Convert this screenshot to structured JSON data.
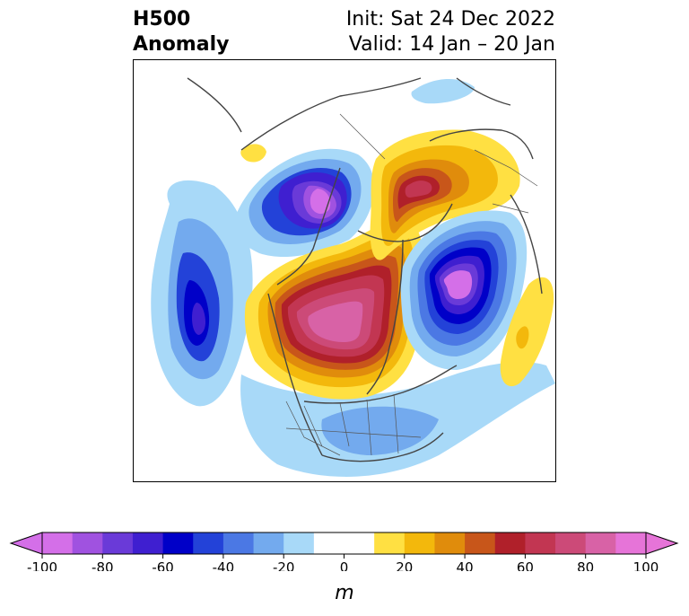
{
  "title": {
    "left_line1": "H500",
    "left_line2": "Anomaly",
    "right_line1": "Init: Sat 24 Dec 2022",
    "right_line2": "Valid: 14 Jan – 20 Jan"
  },
  "colorbar": {
    "unit_label": "m",
    "ticks": [
      "-100",
      "-80",
      "-60",
      "-40",
      "-20",
      "0",
      "20",
      "40",
      "60",
      "80",
      "100"
    ],
    "colors": [
      "#d46fe8",
      "#a052e0",
      "#6a3ad8",
      "#3f1fd0",
      "#0000c8",
      "#2342d8",
      "#4b78e4",
      "#73aaee",
      "#a8d9f8",
      "#ffffff",
      "#ffffff",
      "#ffe042",
      "#f3b80c",
      "#e08c0c",
      "#c8561a",
      "#b0202a",
      "#c23652",
      "#cc4a78",
      "#d862a6",
      "#e674d8"
    ],
    "under_color": "#d46fe8",
    "over_color": "#e674d8"
  },
  "map": {
    "projection": "polar stereographic (North Pole)",
    "anomaly_centers": [
      {
        "name": "positive-arctic-ridge",
        "sign": "positive"
      },
      {
        "name": "positive-siberia-ridge",
        "sign": "positive"
      },
      {
        "name": "positive-nw-europe",
        "sign": "positive"
      },
      {
        "name": "negative-eurasia-low",
        "sign": "negative"
      },
      {
        "name": "negative-alaska-low",
        "sign": "negative"
      },
      {
        "name": "negative-north-pacific-low",
        "sign": "negative"
      }
    ]
  }
}
